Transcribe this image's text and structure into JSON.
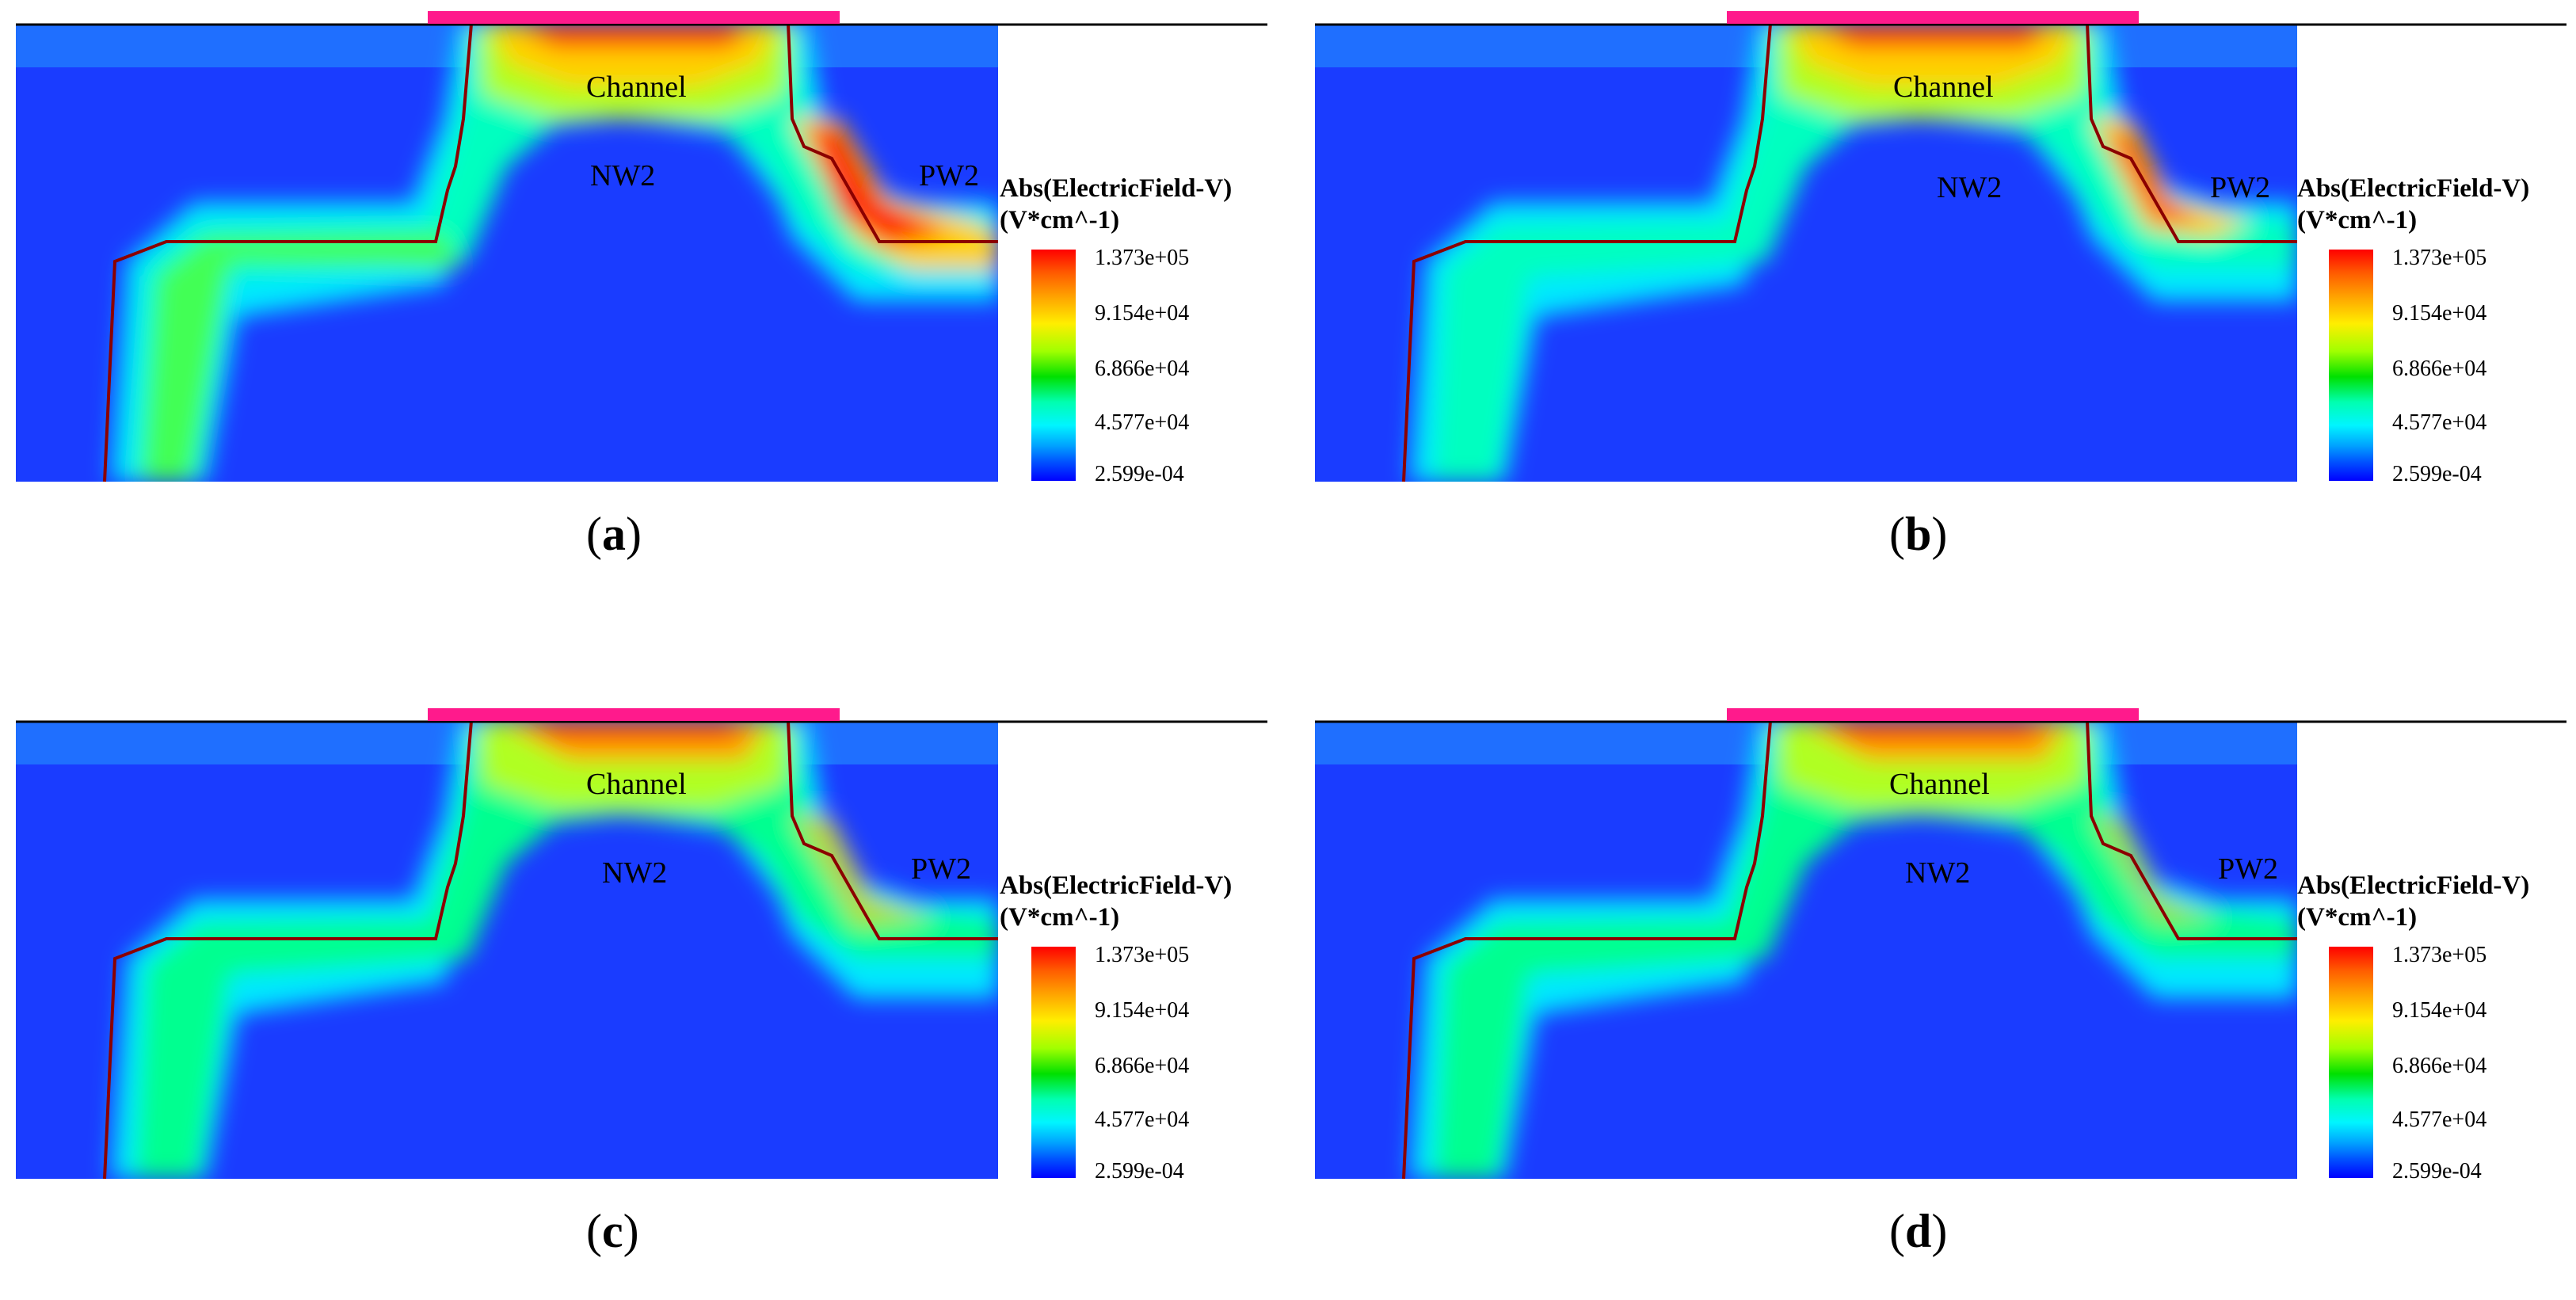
{
  "region_labels": {
    "channel": "Channel",
    "nw2": "NW2",
    "pw2": "PW2"
  },
  "legend": {
    "title_line1": "Abs(ElectricField-V)",
    "title_line2": "(V*cm^-1)",
    "ticks": [
      "1.373e+05",
      "9.154e+04",
      "6.866e+04",
      "4.577e+04",
      "2.599e-04"
    ]
  },
  "captions": [
    "a",
    "b",
    "c",
    "d"
  ],
  "colors": {
    "background_field": "#1f4dff",
    "gate_oxide": "#ff1a8c",
    "junction_line": "#8b0000",
    "surface_line": "#000000"
  },
  "panels_high_field_near_pw2": [
    true,
    true,
    false,
    false
  ]
}
